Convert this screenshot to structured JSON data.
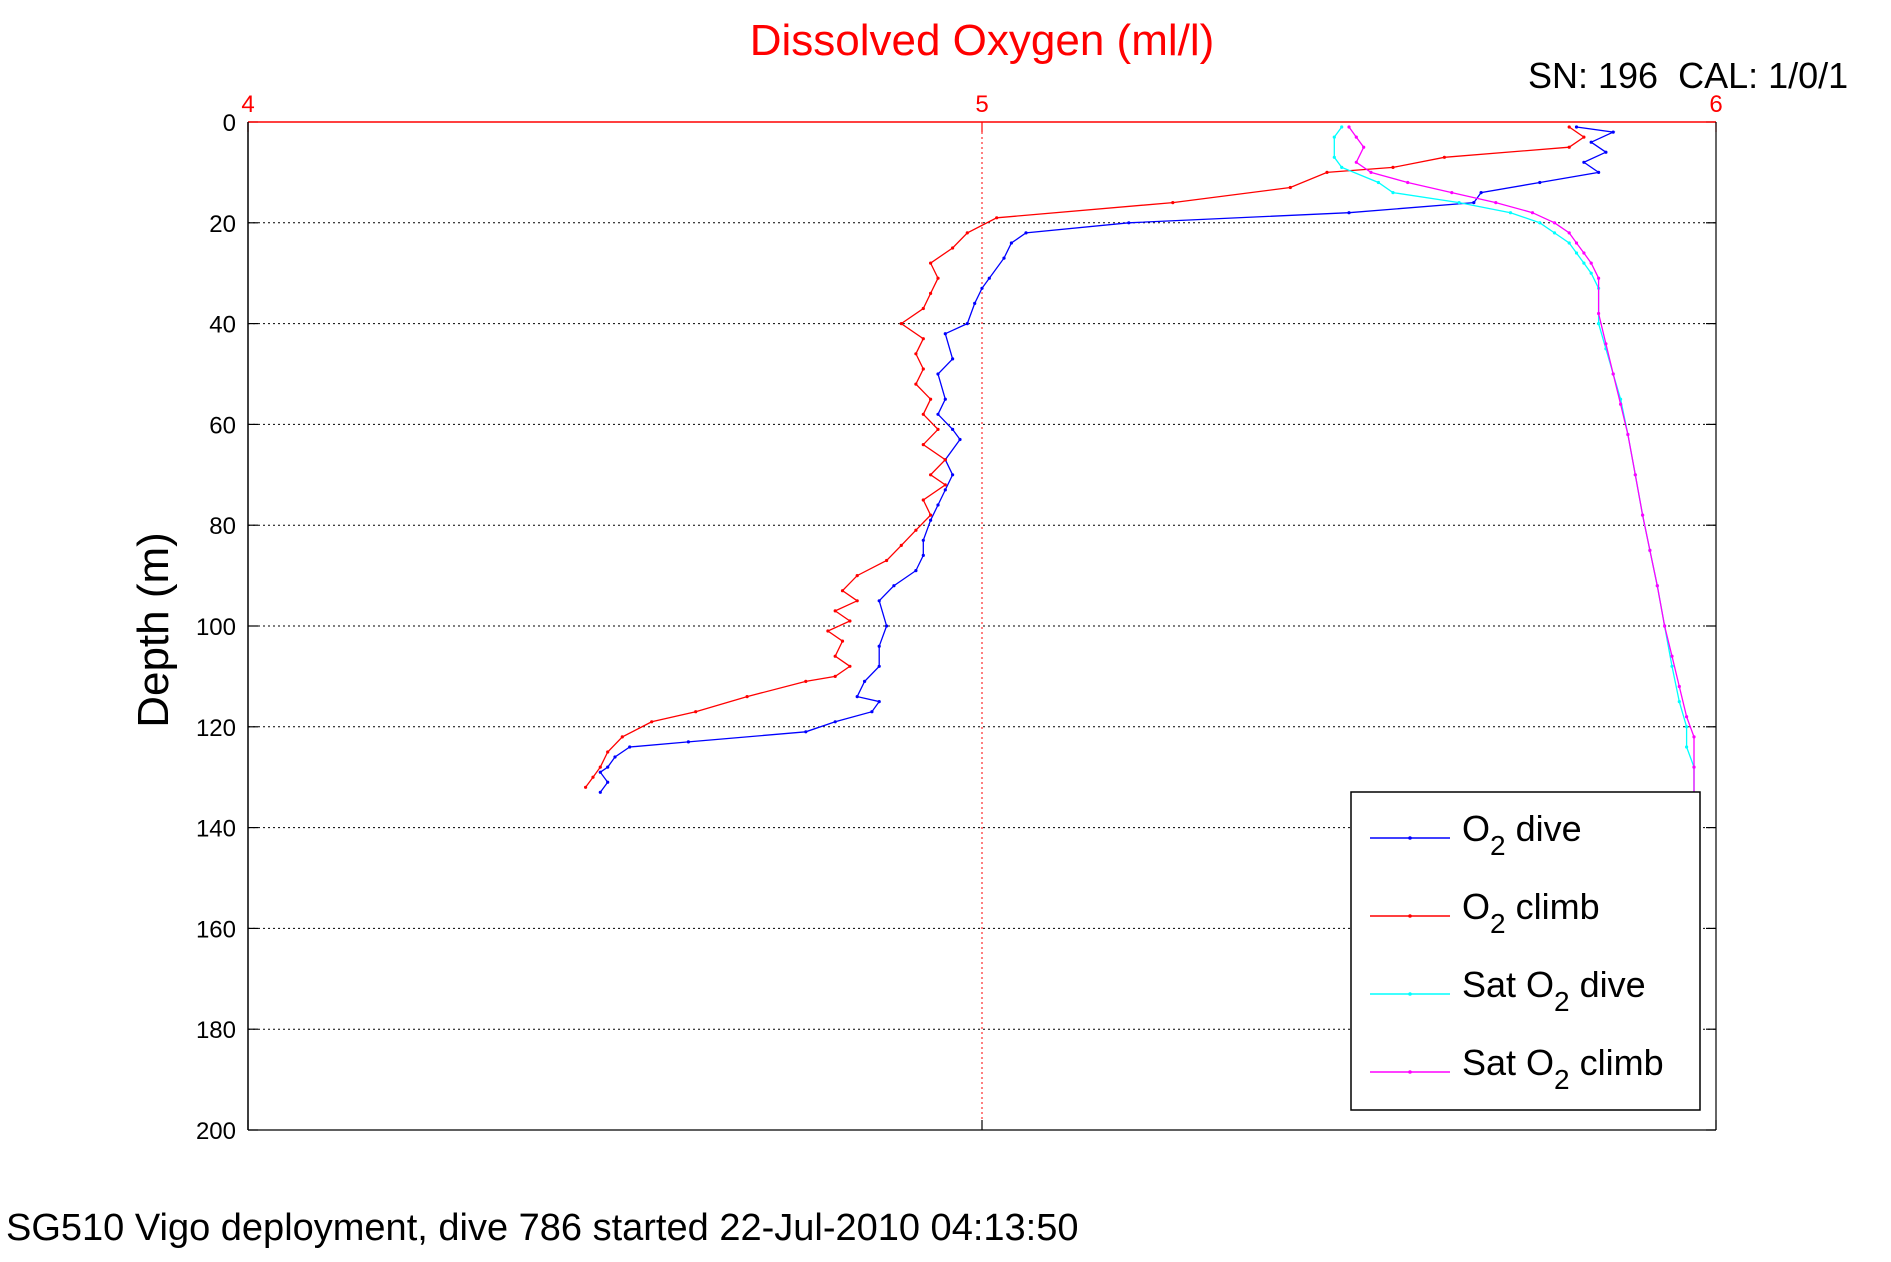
{
  "colors": {
    "title": "#ff0000",
    "x_axis": "#ff0000",
    "axis": "#000000",
    "grid": "#000000",
    "o2_dive": "#0000ff",
    "o2_climb": "#ff0000",
    "sat_dive": "#00ffff",
    "sat_climb": "#ff00ff",
    "background": "#ffffff"
  },
  "chart_data": {
    "type": "line",
    "title": "Dissolved Oxygen (ml/l)",
    "subtitle": "SN: 196  CAL: 1/0/1",
    "footer": "SG510 Vigo deployment, dive 786 started 22-Jul-2010 04:13:50",
    "xlabel": "",
    "ylabel": "Depth (m)",
    "xlim": [
      4,
      6
    ],
    "ylim": [
      0,
      200
    ],
    "y_reversed": true,
    "x_axis_position": "top",
    "xticks": [
      "4",
      "5",
      "6"
    ],
    "yticks": [
      "0",
      "20",
      "40",
      "60",
      "80",
      "100",
      "120",
      "140",
      "160",
      "180",
      "200"
    ],
    "grid": true,
    "legend_position": "bottom-right",
    "legend": [
      {
        "base": "O",
        "sub": "2",
        "suffix": " dive",
        "prefix": ""
      },
      {
        "base": "O",
        "sub": "2",
        "suffix": " climb",
        "prefix": ""
      },
      {
        "base": "O",
        "sub": "2",
        "suffix": " dive",
        "prefix": "Sat "
      },
      {
        "base": "O",
        "sub": "2",
        "suffix": " climb",
        "prefix": "Sat "
      }
    ],
    "series": [
      {
        "key": "o2_dive",
        "points": [
          [
            5.81,
            1
          ],
          [
            5.86,
            2
          ],
          [
            5.83,
            4
          ],
          [
            5.85,
            6
          ],
          [
            5.82,
            8
          ],
          [
            5.84,
            10
          ],
          [
            5.76,
            12
          ],
          [
            5.68,
            14
          ],
          [
            5.67,
            16
          ],
          [
            5.5,
            18
          ],
          [
            5.2,
            20
          ],
          [
            5.06,
            22
          ],
          [
            5.04,
            24
          ],
          [
            5.03,
            27
          ],
          [
            5.01,
            31
          ],
          [
            5.0,
            33
          ],
          [
            4.99,
            36
          ],
          [
            4.98,
            40
          ],
          [
            4.95,
            42
          ],
          [
            4.96,
            47
          ],
          [
            4.94,
            50
          ],
          [
            4.95,
            55
          ],
          [
            4.94,
            58
          ],
          [
            4.96,
            61
          ],
          [
            4.97,
            63
          ],
          [
            4.95,
            67
          ],
          [
            4.96,
            70
          ],
          [
            4.95,
            73
          ],
          [
            4.94,
            76
          ],
          [
            4.93,
            79
          ],
          [
            4.92,
            83
          ],
          [
            4.92,
            86
          ],
          [
            4.91,
            89
          ],
          [
            4.88,
            92
          ],
          [
            4.86,
            95
          ],
          [
            4.87,
            100
          ],
          [
            4.86,
            104
          ],
          [
            4.86,
            108
          ],
          [
            4.84,
            111
          ],
          [
            4.83,
            114
          ],
          [
            4.86,
            115
          ],
          [
            4.85,
            117
          ],
          [
            4.8,
            119
          ],
          [
            4.76,
            121
          ],
          [
            4.6,
            123
          ],
          [
            4.52,
            124
          ],
          [
            4.5,
            126
          ],
          [
            4.49,
            128
          ],
          [
            4.48,
            129
          ],
          [
            4.49,
            131
          ],
          [
            4.48,
            133
          ]
        ]
      },
      {
        "key": "o2_climb",
        "points": [
          [
            4.46,
            132
          ],
          [
            4.47,
            130
          ],
          [
            4.48,
            128
          ],
          [
            4.49,
            125
          ],
          [
            4.51,
            122
          ],
          [
            4.55,
            119
          ],
          [
            4.61,
            117
          ],
          [
            4.68,
            114
          ],
          [
            4.76,
            111
          ],
          [
            4.8,
            110
          ],
          [
            4.82,
            108
          ],
          [
            4.8,
            106
          ],
          [
            4.81,
            103
          ],
          [
            4.79,
            101
          ],
          [
            4.82,
            99
          ],
          [
            4.8,
            97
          ],
          [
            4.83,
            95
          ],
          [
            4.81,
            93
          ],
          [
            4.83,
            90
          ],
          [
            4.87,
            87
          ],
          [
            4.89,
            84
          ],
          [
            4.91,
            81
          ],
          [
            4.93,
            78
          ],
          [
            4.92,
            75
          ],
          [
            4.95,
            72
          ],
          [
            4.93,
            70
          ],
          [
            4.95,
            67
          ],
          [
            4.92,
            64
          ],
          [
            4.94,
            61
          ],
          [
            4.92,
            58
          ],
          [
            4.93,
            55
          ],
          [
            4.91,
            52
          ],
          [
            4.92,
            49
          ],
          [
            4.91,
            46
          ],
          [
            4.92,
            43
          ],
          [
            4.89,
            40
          ],
          [
            4.92,
            37
          ],
          [
            4.93,
            34
          ],
          [
            4.94,
            31
          ],
          [
            4.93,
            28
          ],
          [
            4.96,
            25
          ],
          [
            4.98,
            22
          ],
          [
            5.02,
            19
          ],
          [
            5.26,
            16
          ],
          [
            5.42,
            13
          ],
          [
            5.47,
            10
          ],
          [
            5.56,
            9
          ],
          [
            5.63,
            7
          ],
          [
            5.8,
            5
          ],
          [
            5.82,
            3
          ],
          [
            5.8,
            1
          ]
        ]
      },
      {
        "key": "sat_dive",
        "points": [
          [
            5.49,
            1
          ],
          [
            5.48,
            3
          ],
          [
            5.48,
            7
          ],
          [
            5.49,
            9
          ],
          [
            5.54,
            12
          ],
          [
            5.56,
            14
          ],
          [
            5.65,
            16
          ],
          [
            5.72,
            18
          ],
          [
            5.76,
            20
          ],
          [
            5.78,
            22
          ],
          [
            5.8,
            24
          ],
          [
            5.81,
            26
          ],
          [
            5.82,
            28
          ],
          [
            5.83,
            30
          ],
          [
            5.84,
            33
          ],
          [
            5.84,
            40
          ],
          [
            5.85,
            45
          ],
          [
            5.86,
            50
          ],
          [
            5.87,
            55
          ],
          [
            5.88,
            62
          ],
          [
            5.89,
            70
          ],
          [
            5.9,
            78
          ],
          [
            5.91,
            85
          ],
          [
            5.92,
            92
          ],
          [
            5.93,
            100
          ],
          [
            5.94,
            108
          ],
          [
            5.95,
            115
          ],
          [
            5.96,
            120
          ],
          [
            5.96,
            124
          ],
          [
            5.97,
            128
          ],
          [
            5.97,
            134
          ]
        ]
      },
      {
        "key": "sat_climb",
        "points": [
          [
            5.5,
            1
          ],
          [
            5.51,
            3
          ],
          [
            5.52,
            5
          ],
          [
            5.51,
            8
          ],
          [
            5.53,
            10
          ],
          [
            5.58,
            12
          ],
          [
            5.64,
            14
          ],
          [
            5.7,
            16
          ],
          [
            5.75,
            18
          ],
          [
            5.78,
            20
          ],
          [
            5.8,
            22
          ],
          [
            5.81,
            24
          ],
          [
            5.82,
            26
          ],
          [
            5.83,
            28
          ],
          [
            5.84,
            31
          ],
          [
            5.84,
            38
          ],
          [
            5.85,
            44
          ],
          [
            5.86,
            50
          ],
          [
            5.87,
            56
          ],
          [
            5.88,
            62
          ],
          [
            5.89,
            70
          ],
          [
            5.9,
            78
          ],
          [
            5.91,
            85
          ],
          [
            5.92,
            92
          ],
          [
            5.93,
            100
          ],
          [
            5.94,
            106
          ],
          [
            5.95,
            112
          ],
          [
            5.96,
            118
          ],
          [
            5.97,
            122
          ],
          [
            5.97,
            128
          ],
          [
            5.97,
            134
          ]
        ]
      }
    ]
  }
}
